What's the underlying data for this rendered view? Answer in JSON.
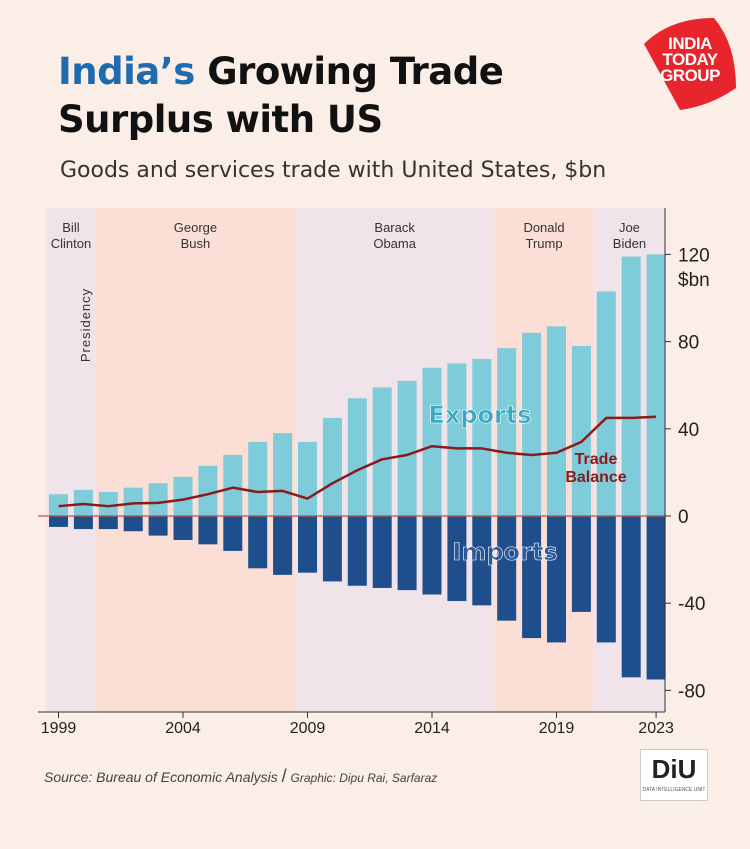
{
  "header": {
    "title_highlight": "India’s",
    "title_rest_line1": "Growing Trade",
    "title_line2": "Surplus with US",
    "subtitle": "Goods and services trade with United States, $bn"
  },
  "logo": {
    "text": "INDIA TODAY GROUP",
    "color": "#e8242c"
  },
  "footer": {
    "source": "Source: Bureau of Economic Analysis",
    "separator": "/",
    "credit": "Graphic: Dipu Rai, Sarfaraz",
    "diu_logo": "DiU",
    "diu_caption": "DATA INTELLIGENCE UNIT"
  },
  "colors": {
    "exports": "#7ecbd9",
    "imports": "#1f4e8c",
    "trade_balance": "#8b1a1a",
    "zero_line": "#c0504d",
    "band_pink": "#fbded6",
    "band_lavender": "#f1e3ea",
    "exports_label": "#3aa9c0",
    "imports_label": "#2a5a9a"
  },
  "chart_data": {
    "type": "bar",
    "x": [
      1999,
      2000,
      2001,
      2002,
      2003,
      2004,
      2005,
      2006,
      2007,
      2008,
      2009,
      2010,
      2011,
      2012,
      2013,
      2014,
      2015,
      2016,
      2017,
      2018,
      2019,
      2020,
      2021,
      2022,
      2023
    ],
    "x_tick_labels": [
      "1999",
      "2004",
      "2009",
      "2014",
      "2019",
      "2023"
    ],
    "series": [
      {
        "name": "Exports",
        "values": [
          10,
          12,
          11,
          13,
          15,
          18,
          23,
          28,
          34,
          38,
          34,
          45,
          54,
          59,
          62,
          68,
          70,
          72,
          77,
          84,
          87,
          78,
          103,
          119,
          120
        ]
      },
      {
        "name": "Imports",
        "values": [
          -5,
          -6,
          -6,
          -7,
          -9,
          -11,
          -13,
          -16,
          -24,
          -27,
          -26,
          -30,
          -32,
          -33,
          -34,
          -36,
          -39,
          -41,
          -48,
          -56,
          -58,
          -44,
          -58,
          -74,
          -75
        ]
      },
      {
        "name": "Trade Balance",
        "type": "line",
        "values": [
          4.5,
          5.5,
          4.5,
          5.8,
          6,
          7.5,
          10,
          13,
          11,
          11.5,
          8,
          15,
          21,
          26,
          28,
          32,
          31,
          31,
          29,
          28,
          29,
          34,
          45,
          45,
          45.5
        ]
      }
    ],
    "series_labels": {
      "exports": "Exports",
      "imports": "Imports",
      "trade_balance": [
        "Trade",
        "Balance"
      ]
    },
    "ylim": [
      -88,
      128
    ],
    "y_ticks": [
      120,
      80,
      40,
      0,
      -40,
      -80
    ],
    "y_unit": "$bn",
    "presidencies": [
      {
        "label": [
          "Bill",
          "Clinton"
        ],
        "start": 1999,
        "end": 2000,
        "shade": "lavender"
      },
      {
        "label": [
          "George",
          "Bush"
        ],
        "start": 2001,
        "end": 2008,
        "shade": "pink"
      },
      {
        "label": [
          "Barack",
          "Obama"
        ],
        "start": 2009,
        "end": 2016,
        "shade": "lavender"
      },
      {
        "label": [
          "Donald",
          "Trump"
        ],
        "start": 2017,
        "end": 2020,
        "shade": "pink"
      },
      {
        "label": [
          "Joe",
          "Biden"
        ],
        "start": 2021,
        "end": 2023,
        "shade": "lavender"
      }
    ],
    "presidency_axis_label": "Presidency"
  }
}
